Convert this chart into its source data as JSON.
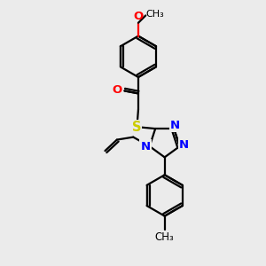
{
  "background_color": "#ebebeb",
  "bond_color": "#000000",
  "nitrogen_color": "#0000ff",
  "oxygen_color": "#ff0000",
  "sulfur_color": "#cccc00",
  "line_width": 1.6,
  "font_size": 8.5,
  "fig_width": 3.0,
  "fig_height": 3.0,
  "dpi": 100,
  "xlim": [
    0,
    10
  ],
  "ylim": [
    0,
    10
  ]
}
